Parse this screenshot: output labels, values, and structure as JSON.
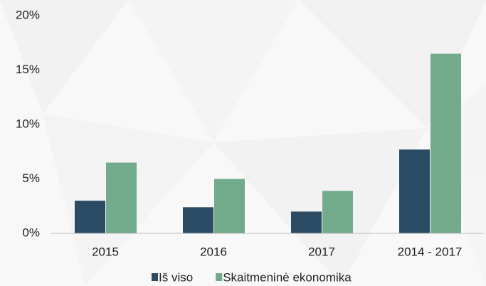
{
  "chart_data": {
    "type": "bar",
    "categories": [
      "2015",
      "2016",
      "2017",
      "2014 - 2017"
    ],
    "series": [
      {
        "name": "Iš viso",
        "color": "#2b4a63",
        "values": [
          3.0,
          2.4,
          2.0,
          7.7
        ]
      },
      {
        "name": "Skaitmeninė ekonomika",
        "color": "#72aa8c",
        "values": [
          6.5,
          5.0,
          3.9,
          16.5
        ]
      }
    ],
    "ylim": [
      0,
      20
    ],
    "yticks": [
      {
        "value": 0,
        "label": "0%"
      },
      {
        "value": 5,
        "label": "5%"
      },
      {
        "value": 10,
        "label": "10%"
      },
      {
        "value": 15,
        "label": "15%"
      },
      {
        "value": 20,
        "label": "20%"
      }
    ],
    "grid": false,
    "legend": "bottom"
  }
}
